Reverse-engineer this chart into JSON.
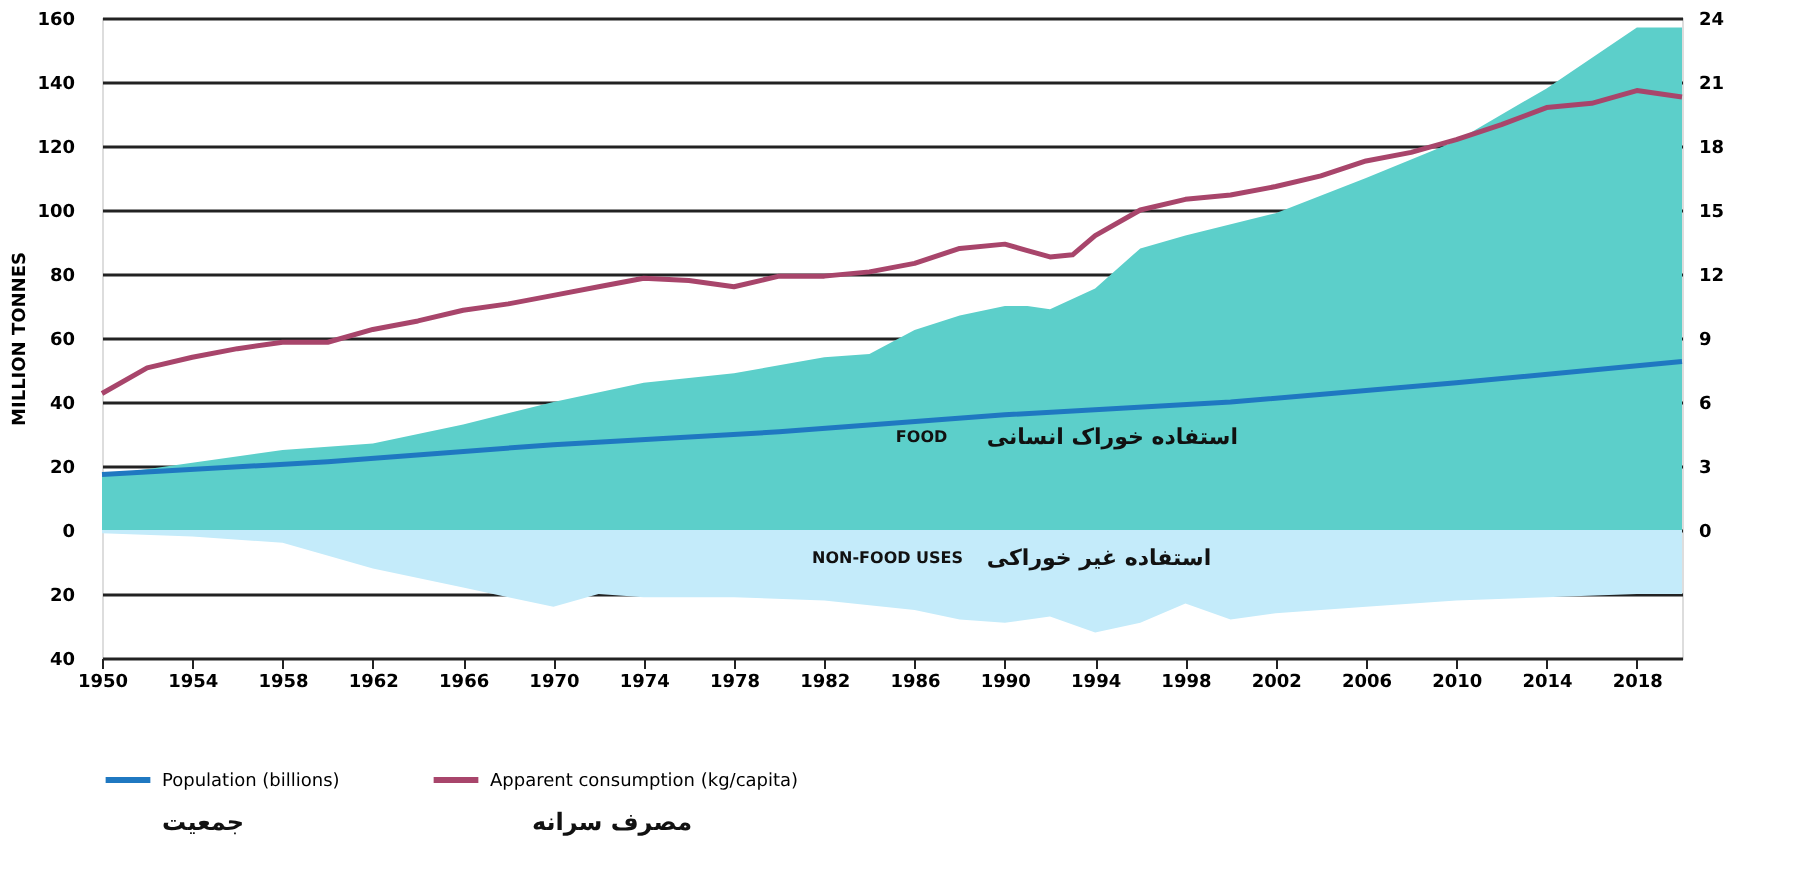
{
  "chart_data": {
    "type": "area",
    "ylabel": "MILLION TONNES",
    "xlim": [
      1950,
      2020
    ],
    "xticks": [
      1950,
      1954,
      1958,
      1962,
      1966,
      1970,
      1974,
      1978,
      1982,
      1986,
      1990,
      1994,
      1998,
      2002,
      2006,
      2010,
      2014,
      2018
    ],
    "ylim": [
      -40,
      160
    ],
    "yticks": [
      {
        "value": -40,
        "label": "40"
      },
      {
        "value": -20,
        "label": "20"
      },
      0,
      20,
      40,
      60,
      80,
      100,
      120,
      140,
      160
    ],
    "y2lim": [
      -6,
      24
    ],
    "y2ticks": [
      0,
      3,
      6,
      9,
      12,
      15,
      18,
      21,
      24
    ],
    "grid": "y",
    "legend": "bottom",
    "tick_labels": "x y y2",
    "series": [
      {
        "color": "#5ccfca",
        "x": [
          1950,
          1954,
          1958,
          1962,
          1966,
          1970,
          1974,
          1978,
          1982,
          1984,
          1986,
          1988,
          1990,
          1991,
          1992,
          1994,
          1996,
          1998,
          2002,
          2006,
          2010,
          2014,
          2018,
          2020
        ],
        "values": [
          17,
          21,
          25,
          27,
          33,
          40,
          46,
          49,
          54,
          55,
          62.5,
          67,
          70,
          70,
          69,
          75.5,
          88,
          92,
          99,
          110,
          121.6,
          138,
          157,
          157
        ]
      },
      {
        "color": "#c4ebfa",
        "x": [
          1950,
          1954,
          1958,
          1962,
          1966,
          1968,
          1970,
          1972,
          1974,
          1978,
          1982,
          1986,
          1988,
          1990,
          1992,
          1994,
          1996,
          1998,
          2000,
          2002,
          2006,
          2010,
          2014,
          2018,
          2020
        ],
        "values": [
          -1,
          -2,
          -4,
          -12,
          -18,
          -21,
          -24,
          -20,
          -21,
          -21,
          -22,
          -25,
          -28,
          -29,
          -27,
          -32,
          -29,
          -23,
          -28,
          -26,
          -24,
          -22,
          -21,
          -20,
          -20
        ]
      },
      {
        "type": "line",
        "axis": "y2",
        "name": "Population (billions)",
        "color": "#1f78c1",
        "x": [
          1950,
          1960,
          1970,
          1980,
          1990,
          2000,
          2010,
          2020
        ],
        "values": [
          2.6,
          3.2,
          4.0,
          4.6,
          5.4,
          6.0,
          6.9,
          7.9
        ]
      },
      {
        "type": "line",
        "axis": "y2",
        "name": "Apparent consumption (kg/capita)",
        "color": "#a8456b",
        "x": [
          1950,
          1952,
          1954,
          1956,
          1958,
          1960,
          1962,
          1964,
          1966,
          1968,
          1970,
          1972,
          1974,
          1976,
          1978,
          1980,
          1982,
          1984,
          1986,
          1988,
          1990,
          1991,
          1992,
          1993,
          1994,
          1996,
          1998,
          2000,
          2002,
          2004,
          2006,
          2008,
          2010,
          2012,
          2014,
          2016,
          2018,
          2020
        ],
        "values": [
          6.4,
          7.6,
          8.1,
          8.5,
          8.8,
          8.8,
          9.4,
          9.8,
          10.3,
          10.6,
          11,
          11.4,
          11.8,
          11.7,
          11.4,
          11.9,
          11.9,
          12.1,
          12.5,
          13.2,
          13.4,
          13.1,
          12.8,
          12.9,
          13.8,
          15,
          15.5,
          15.7,
          16.1,
          16.6,
          17.3,
          17.7,
          18.3,
          19,
          19.8,
          20,
          20.6,
          20.3
        ]
      }
    ],
    "annotations": [
      "FOOD",
      "استفاده خوراک انسانی",
      "NON-FOOD USES",
      "استفاده غیر خوراکی",
      "جمعیت",
      "مصرف سرانه"
    ]
  }
}
